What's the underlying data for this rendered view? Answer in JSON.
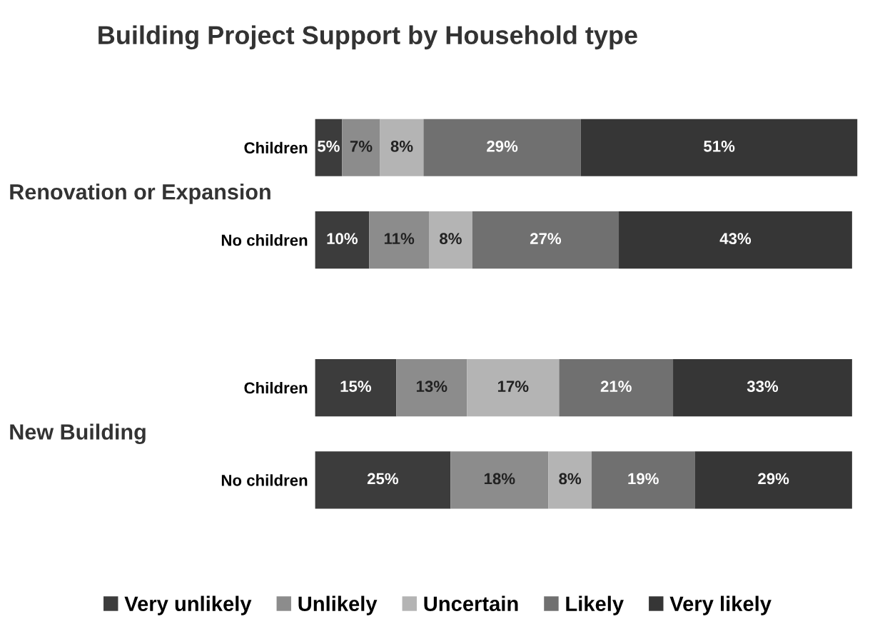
{
  "chart_data": {
    "type": "bar",
    "orientation": "horizontal",
    "stacked": true,
    "title": "Building Project Support by Household type",
    "categories": [
      "Children",
      "No children",
      "Children",
      "No children"
    ],
    "series": [
      {
        "name": "Very unlikely",
        "color": "#3c3c3c",
        "values": [
          5,
          10,
          15,
          25
        ],
        "value_labels": [
          "5%",
          "10%",
          "15%",
          "25%"
        ]
      },
      {
        "name": "Unlikely",
        "color": "#8c8c8c",
        "values": [
          7,
          11,
          13,
          18
        ],
        "value_labels": [
          "7%",
          "11%",
          "13%",
          "18%"
        ]
      },
      {
        "name": "Uncertain",
        "color": "#b4b4b4",
        "values": [
          8,
          8,
          17,
          8
        ],
        "value_labels": [
          "8%",
          "8%",
          "17%",
          "8%"
        ]
      },
      {
        "name": "Likely",
        "color": "#707070",
        "values": [
          29,
          27,
          21,
          19
        ],
        "value_labels": [
          "29%",
          "27%",
          "21%",
          "19%"
        ]
      },
      {
        "name": "Very likely",
        "color": "#363636",
        "values": [
          51,
          43,
          33,
          29
        ],
        "value_labels": [
          "51%",
          "43%",
          "33%",
          "29%"
        ]
      }
    ],
    "annotations": [
      "Renovation or Expansion",
      "New Building"
    ],
    "legend": "bottom"
  }
}
